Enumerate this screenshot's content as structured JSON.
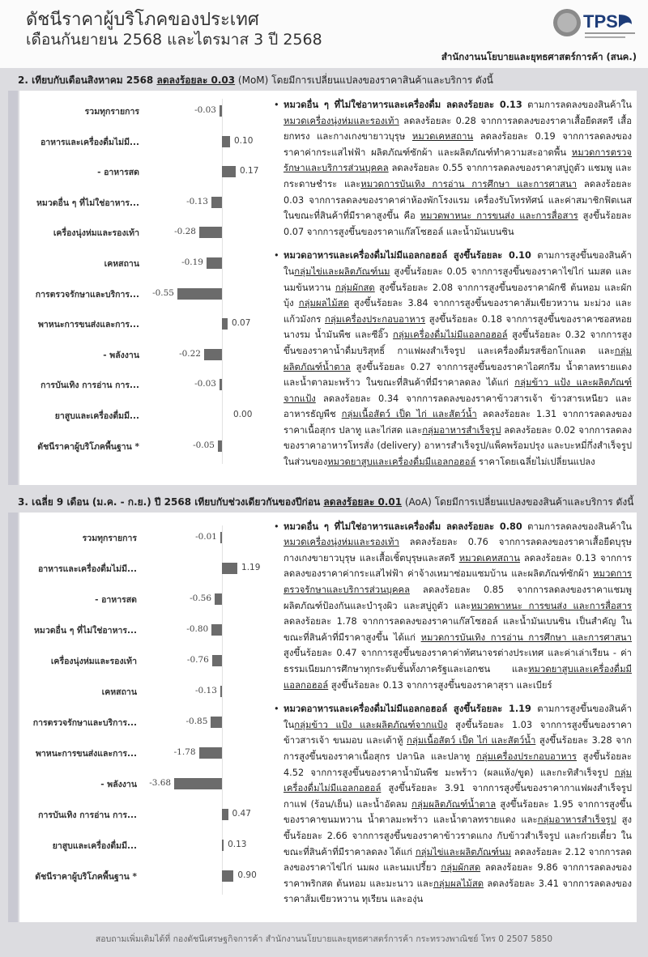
{
  "header": {
    "title": "ดัชนีราคาผู้บริโภคของประเทศ",
    "subtitle": "เดือนกันยายน 2568 และไตรมาส 3 ปี 2568",
    "logo_text": "TPSO",
    "agency": "สำนักงานนโยบายและยุทธศาสตร์การค้า (สนค.)",
    "colors": {
      "background": "#dcdce0",
      "bar": "#6b6b6b",
      "logo": "#1d3c78"
    }
  },
  "section2": {
    "prefix": "2. เทียบกับเดือนสิงหาคม 2568 ",
    "highlight": "ลดลงร้อยละ 0.03",
    "suffix": " (MoM) โดยมีการเปลี่ยนแปลงของราคาสินค้าและบริการ ดังนี้"
  },
  "section3": {
    "prefix": "3. เฉลี่ย 9 เดือน (ม.ค. - ก.ย.) ปี 2568 เทียบกับช่วงเดียวกันของปีก่อน ",
    "highlight": "ลดลงร้อยละ 0.01",
    "suffix": " (AoA) โดยมีการเปลี่ยนแปลงของสินค้าและบริการ ดังนี้"
  },
  "chart_data": [
    {
      "type": "bar",
      "orientation": "horizontal",
      "categories": [
        "รวมทุกรายการ",
        "อาหารและเครื่องดื่มไม่มี...",
        "- อาหารสด",
        "หมวดอื่น ๆ ที่ไม่ใช่อาหาร...",
        "เครื่องนุ่งห่มและรองเท้า",
        "เคหสถาน",
        "การตรวจรักษาและบริการ...",
        "พาหนะการขนส่งและการ...",
        "- พลังงาน",
        "การบันเทิง การอ่าน การ...",
        "ยาสูบและเครื่องดื่มมี...",
        "ดัชนีราคาผู้บริโภคพื้นฐาน *"
      ],
      "values": [
        -0.03,
        0.1,
        0.17,
        -0.13,
        -0.28,
        -0.19,
        -0.55,
        0.07,
        -0.22,
        -0.03,
        0.0,
        -0.05
      ],
      "value_labels": [
        "-0.03",
        "0.10",
        "0.17",
        "-0.13",
        "-0.28",
        "-0.19",
        "-0.55",
        "0.07",
        "-0.22",
        "-0.03",
        "0.00",
        "-0.05"
      ]
    },
    {
      "type": "bar",
      "orientation": "horizontal",
      "categories": [
        "รวมทุกรายการ",
        "อาหารและเครื่องดื่มไม่มี...",
        "- อาหารสด",
        "หมวดอื่น ๆ ที่ไม่ใช่อาหาร...",
        "เครื่องนุ่งห่มและรองเท้า",
        "เคหสถาน",
        "การตรวจรักษาและบริการ...",
        "พาหนะการขนส่งและการ...",
        "- พลังงาน",
        "การบันเทิง การอ่าน การ...",
        "ยาสูบและเครื่องดื่มมี...",
        "ดัชนีราคาผู้บริโภคพื้นฐาน *"
      ],
      "values": [
        -0.01,
        1.19,
        -0.56,
        -0.8,
        -0.76,
        -0.13,
        -0.85,
        -1.78,
        -3.68,
        0.47,
        0.13,
        0.9
      ],
      "value_labels": [
        "-0.01",
        "1.19",
        "-0.56",
        "-0.80",
        "-0.76",
        "-0.13",
        "-0.85",
        "-1.78",
        "-3.68",
        "0.47",
        "0.13",
        "0.90"
      ]
    }
  ],
  "text2": [
    [
      {
        "t": "หมวดอื่น ๆ ที่ไม่ใช่อาหารและเครื่องดื่ม ลดลงร้อยละ 0.13",
        "b": 1
      },
      {
        "t": " ตามการลดลงของสินค้าใน"
      },
      {
        "t": "หมวดเครื่องนุ่งห่มและรองเท้า",
        "u": 1
      },
      {
        "t": " ลดลงร้อยละ 0.28 จากการลดลงของราคาเสื้อยืดสตรี เสื้อยกทรง และกางเกงขายาวบุรุษ "
      },
      {
        "t": "หมวดเคหสถาน",
        "u": 1
      },
      {
        "t": " ลดลงร้อยละ 0.19 จากการลดลงของราคาค่ากระแสไฟฟ้า ผลิตภัณฑ์ซักผ้า และผลิตภัณฑ์ทำความสะอาดพื้น "
      },
      {
        "t": "หมวดการตรวจรักษาและบริการส่วนบุคคล",
        "u": 1
      },
      {
        "t": " ลดลงร้อยละ 0.55 จากการลดลงของราคาสบู่ถูตัว แชมพู และกระดาษชำระ และ"
      },
      {
        "t": "หมวดการบันเทิง การอ่าน การศึกษา และการศาสนา",
        "u": 1
      },
      {
        "t": " ลดลงร้อยละ 0.03 จากการลดลงของราคาค่าห้องพักโรงแรม เครื่องรับโทรทัศน์ และค่าสมาชิกฟิตเนส ในขณะที่สินค้าที่มีราคาสูงขึ้น คือ "
      },
      {
        "t": "หมวดพาหนะ การขนส่ง และการสื่อสาร",
        "u": 1
      },
      {
        "t": " สูงขึ้นร้อยละ 0.07 จากการสูงขึ้นของราคาแก๊สโซฮอล์ และน้ำมันเบนซิน"
      }
    ],
    [
      {
        "t": "หมวดอาหารและเครื่องดื่มไม่มีแอลกอฮอล์ สูงขึ้นร้อยละ 0.10",
        "b": 1
      },
      {
        "t": " ตามการสูงขึ้นของสินค้าใน"
      },
      {
        "t": "กลุ่มไข่และผลิตภัณฑ์นม",
        "u": 1
      },
      {
        "t": " สูงขึ้นร้อยละ 0.05 จากการสูงขึ้นของราคาไข่ไก่ นมสด และนมข้นหวาน "
      },
      {
        "t": "กลุ่มผักสด",
        "u": 1
      },
      {
        "t": " สูงขึ้นร้อยละ 2.08 จากการสูงขึ้นของราคาผักชี ต้นหอม และผักบุ้ง "
      },
      {
        "t": "กลุ่มผลไม้สด",
        "u": 1
      },
      {
        "t": " สูงขึ้นร้อยละ 3.84 จากการสูงขึ้นของราคาส้มเขียวหวาน มะม่วง และแก้วมังกร "
      },
      {
        "t": "กลุ่มเครื่องประกอบอาหาร",
        "u": 1
      },
      {
        "t": " สูงขึ้นร้อยละ 0.18 จากการสูงขึ้นของราคาซอสหอยนางรม น้ำมันพืช และซีอิ๊ว "
      },
      {
        "t": "กลุ่มเครื่องดื่มไม่มีแอลกอฮอล์",
        "u": 1
      },
      {
        "t": " สูงขึ้นร้อยละ 0.32 จากการสูงขึ้นของราคาน้ำดื่มบริสุทธิ์ กาแฟผงสำเร็จรูป และเครื่องดื่มรสช็อกโกแลต และ"
      },
      {
        "t": "กลุ่มผลิตภัณฑ์น้ำตาล",
        "u": 1
      },
      {
        "t": " สูงขึ้นร้อยละ 0.27 จากการสูงขึ้นของราคาไอศกรีม น้ำตาลทรายแดง และน้ำตาลมะพร้าว ในขณะที่สินค้าที่มีราคาลดลง ได้แก่ "
      },
      {
        "t": "กลุ่มข้าว แป้ง และผลิตภัณฑ์จากแป้ง",
        "u": 1
      },
      {
        "t": " ลดลงร้อยละ 0.34 จากการลดลงของราคาข้าวสารเจ้า ข้าวสารเหนียว และอาหารธัญพืช "
      },
      {
        "t": "กลุ่มเนื้อสัตว์ เป็ด ไก่ และสัตว์น้ำ",
        "u": 1
      },
      {
        "t": " ลดลงร้อยละ 1.31 จากการลดลงของราคาเนื้อสุกร ปลาทู และไก่สด และ"
      },
      {
        "t": "กลุ่มอาหารสำเร็จรูป",
        "u": 1
      },
      {
        "t": " ลดลงร้อยละ 0.02 จากการลดลงของราคาอาหารโทรสั่ง (delivery) อาหารสำเร็จรูป/แพ็คพร้อมปรุง และบะหมี่กึ่งสำเร็จรูป ในส่วนของ"
      },
      {
        "t": "หมวดยาสูบและเครื่องดื่มมีแอลกอฮอล์",
        "u": 1
      },
      {
        "t": " ราคาโดยเฉลี่ยไม่เปลี่ยนแปลง"
      }
    ]
  ],
  "text3": [
    [
      {
        "t": "หมวดอื่น ๆ ที่ไม่ใช่อาหารและเครื่องดื่ม ลดลงร้อยละ 0.80",
        "b": 1
      },
      {
        "t": " ตามการลดลงของสินค้าใน"
      },
      {
        "t": "หมวดเครื่องนุ่งห่มและรองเท้า",
        "u": 1
      },
      {
        "t": " ลดลงร้อยละ 0.76 จากการลดลงของราคาเสื้อยืดบุรุษ กางเกงขายาวบุรุษ และเสื้อเชิ้ตบุรุษและสตรี "
      },
      {
        "t": "หมวดเคหสถาน",
        "u": 1
      },
      {
        "t": " ลดลงร้อยละ 0.13 จากการลดลงของราคาค่ากระแสไฟฟ้า ค่าจ้างเหมาซ่อมแซมบ้าน และผลิตภัณฑ์ซักผ้า "
      },
      {
        "t": "หมวดการตรวจรักษาและบริการส่วนบุคคล",
        "u": 1
      },
      {
        "t": " ลดลงร้อยละ 0.85 จากการลดลงของราคาแชมพู ผลิตภัณฑ์ป้องกันและบำรุงผิว และสบู่ถูตัว และ"
      },
      {
        "t": "หมวดพาหนะ การขนส่ง และการสื่อสาร",
        "u": 1
      },
      {
        "t": " ลดลงร้อยละ 1.78 จากการลดลงของราคาแก๊สโซฮอล์ และน้ำมันเบนซิน เป็นสำคัญ ในขณะที่สินค้าที่มีราคาสูงขึ้น ได้แก่ "
      },
      {
        "t": "หมวดการบันเทิง การอ่าน การศึกษา และการศาสนา",
        "u": 1
      },
      {
        "t": " สูงขึ้นร้อยละ 0.47 จากการสูงขึ้นของราคาค่าทัศนาจรต่างประเทศ และค่าเล่าเรียน - ค่าธรรมเนียมการศึกษาทุกระดับชั้นทั้งภาครัฐและเอกชน และ"
      },
      {
        "t": "หมวดยาสูบและเครื่องดื่มมีแอลกอฮอล์",
        "u": 1
      },
      {
        "t": " สูงขึ้นร้อยละ 0.13 จากการสูงขึ้นของราคาสุรา และเบียร์"
      }
    ],
    [
      {
        "t": "หมวดอาหารและเครื่องดื่มไม่มีแอลกอฮอล์ สูงขึ้นร้อยละ 1.19",
        "b": 1
      },
      {
        "t": " ตามการสูงขึ้นของสินค้าใน"
      },
      {
        "t": "กลุ่มข้าว แป้ง และผลิตภัณฑ์จากแป้ง",
        "u": 1
      },
      {
        "t": " สูงขึ้นร้อยละ 1.03 จากการสูงขึ้นของราคาข้าวสารเจ้า ขนมอบ และเต้าหู้ "
      },
      {
        "t": "กลุ่มเนื้อสัตว์ เป็ด ไก่ และสัตว์น้ำ",
        "u": 1
      },
      {
        "t": " สูงขึ้นร้อยละ 3.28 จากการสูงขึ้นของราคาเนื้อสุกร ปลานิล และปลาทู "
      },
      {
        "t": "กลุ่มเครื่องประกอบอาหาร",
        "u": 1
      },
      {
        "t": " สูงขึ้นร้อยละ 4.52 จากการสูงขึ้นของราคาน้ำมันพืช มะพร้าว (ผลแห้ง/ขูด) และกะทิสำเร็จรูป "
      },
      {
        "t": "กลุ่มเครื่องดื่มไม่มีแอลกอฮอล์",
        "u": 1
      },
      {
        "t": " สูงขึ้นร้อยละ 3.91 จากการสูงขึ้นของราคากาแฟผงสำเร็จรูป กาแฟ (ร้อน/เย็น) และน้ำอัดลม "
      },
      {
        "t": "กลุ่มผลิตภัณฑ์น้ำตาล",
        "u": 1
      },
      {
        "t": " สูงขึ้นร้อยละ 1.95 จากการสูงขึ้นของราคาขนมหวาน น้ำตาลมะพร้าว และน้ำตาลทรายแดง และ"
      },
      {
        "t": "กลุ่มอาหารสำเร็จรูป",
        "u": 1
      },
      {
        "t": " สูงขึ้นร้อยละ 2.66 จากการสูงขึ้นของราคาข้าวราดแกง กับข้าวสำเร็จรูป และก๋วยเตี๋ยว ในขณะที่สินค้าที่มีราคาลดลง ได้แก่ "
      },
      {
        "t": "กลุ่มไข่และผลิตภัณฑ์นม",
        "u": 1
      },
      {
        "t": " ลดลงร้อยละ 2.12 จากการลดลงของราคาไข่ไก่ นมผง และนมเปรี้ยว "
      },
      {
        "t": "กลุ่มผักสด",
        "u": 1
      },
      {
        "t": " ลดลงร้อยละ 9.86 จากการลดลงของราคาพริกสด ต้นหอม และมะนาว และ"
      },
      {
        "t": "กลุ่มผลไม้สด",
        "u": 1
      },
      {
        "t": " ลดลงร้อยละ 3.41 จากการลดลงของราคาส้มเขียวหวาน ทุเรียน และองุ่น"
      }
    ]
  ],
  "footer": "สอบถามเพิ่มเติมได้ที่ กองดัชนีเศรษฐกิจการค้า สำนักงานนโยบายและยุทธศาสตร์การค้า กระทรวงพาณิชย์ โทร 0 2507 5850"
}
